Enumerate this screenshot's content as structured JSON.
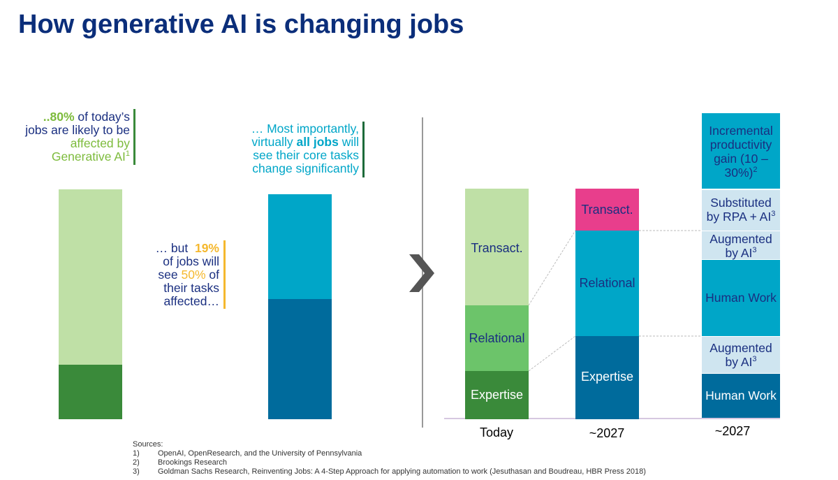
{
  "title": "How generative AI is changing jobs",
  "callouts": {
    "c1": {
      "line1_pct": "..80%",
      "line1_rest": " of today’s",
      "line2": "jobs are likely to be",
      "line3": "affected by",
      "line4": "Generative AI",
      "sup": "1"
    },
    "c2": {
      "line1": "… Most importantly,",
      "line2_pre": "virtually ",
      "line2_bold": "all jobs",
      "line2_post": " will",
      "line3": "see their core tasks",
      "line4": "change significantly"
    },
    "c3": {
      "line1_pre": "… but  ",
      "line1_pct": "19%",
      "line2": "of jobs will",
      "line3_pre": "see ",
      "line3_pct": "50%",
      "line3_post": " of",
      "line4": "their tasks",
      "line5": "affected…"
    }
  },
  "colors": {
    "title": "#0b2e7a",
    "light_green": "#bfe0a6",
    "dark_green": "#3a8a3a",
    "mid_green": "#6cc46a",
    "cyan": "#00a6c8",
    "dark_blue": "#006b9c",
    "magenta": "#e83e8c",
    "pale_blue": "#cfe5f0",
    "yellow": "#f5b82e"
  },
  "chart_data": {
    "type": "bar",
    "stacked": true,
    "categories": [
      "Today",
      "~2027",
      "~2027"
    ],
    "series": [
      {
        "name": "Expertise",
        "values": [
          22,
          37,
          0
        ]
      },
      {
        "name": "Relational",
        "values": [
          29,
          46,
          0
        ]
      },
      {
        "name": "Transact.",
        "values": [
          51,
          19,
          0
        ]
      },
      {
        "name": "Human Work",
        "values": [
          0,
          0,
          19
        ]
      },
      {
        "name": "Augmented by AI (expertise)",
        "values": [
          0,
          0,
          17
        ]
      },
      {
        "name": "Human Work",
        "values": [
          0,
          0,
          34
        ]
      },
      {
        "name": "Augmented by AI (relational)",
        "values": [
          0,
          0,
          13
        ]
      },
      {
        "name": "Substituted by RPA + AI",
        "values": [
          0,
          0,
          18
        ]
      },
      {
        "name": "Incremental productivity gain (10 – 30%)",
        "values": [
          0,
          0,
          34
        ]
      }
    ],
    "left_bars": [
      {
        "label": "",
        "segments": [
          {
            "value": 24
          },
          {
            "value": 76
          }
        ]
      },
      {
        "label": "",
        "segments": [
          {
            "value": 53
          },
          {
            "value": 47
          }
        ]
      }
    ],
    "segment_text": {
      "today_expertise": "Expertise",
      "today_relational": "Relational",
      "today_transact": "Transact.",
      "f_expertise": "Expertise",
      "f_relational": "Relational",
      "f_transact": "Transact.",
      "h_human1": "Human Work",
      "h_aug1": "Augmented",
      "h_aug1b": "by AI",
      "h_human2": "Human Work",
      "h_aug2": "Augmented",
      "h_aug2b": "by AI",
      "h_sub": "Substituted",
      "h_subb": "by RPA + AI",
      "h_inc1": "Incremental",
      "h_inc2": "productivity",
      "h_inc3": "gain (10 –",
      "h_inc4": "30%)",
      "sup3": "3",
      "sup2": "2"
    },
    "xlabels": [
      "Today",
      "~2027",
      "~2027"
    ]
  },
  "sources": {
    "header": "Sources:",
    "items": [
      {
        "n": "1)",
        "text": "OpenAI, OpenResearch, and the University of Pennsylvania"
      },
      {
        "n": "2)",
        "text": "Brookings Research"
      },
      {
        "n": "3)",
        "text": "Goldman Sachs Research, Reinventing Jobs: A 4-Step Approach for applying automation to work (Jesuthasan and Boudreau, HBR Press 2018)"
      }
    ]
  }
}
